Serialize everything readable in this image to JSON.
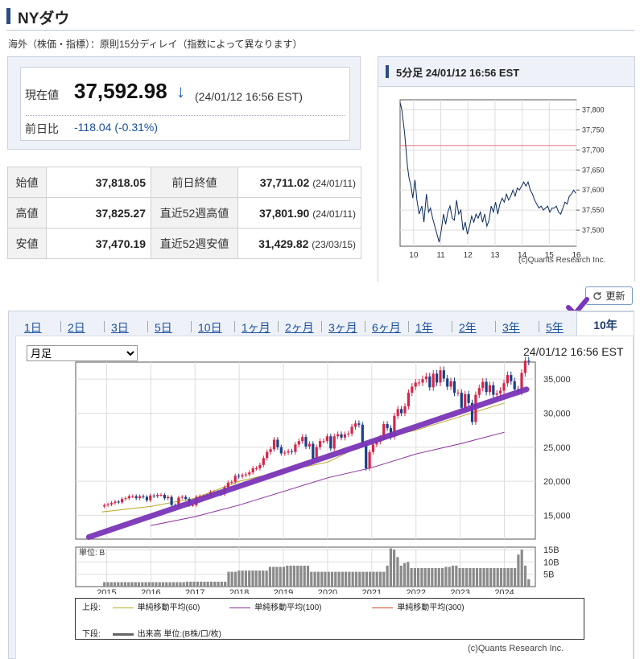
{
  "header": {
    "title": "NYダウ",
    "delay_note": "海外（株価・指標）：原則15分ディレイ（指数によって異なります）"
  },
  "quote": {
    "price_label": "現在値",
    "price": "37,592.98",
    "arrow": "↓",
    "timestamp": "(24/01/12 16:56 EST)",
    "change_label": "前日比",
    "change": "-118.04 (-0.31%)"
  },
  "stats": {
    "open_label": "始値",
    "open": "37,818.05",
    "high_label": "高値",
    "high": "37,825.27",
    "low_label": "安値",
    "low": "37,470.19",
    "prev_close_label": "前日終値",
    "prev_close": "37,711.02",
    "prev_close_date": "(24/01/11)",
    "high52_label": "直近52週高値",
    "high52": "37,801.90",
    "high52_date": "(24/01/11)",
    "low52_label": "直近52週安値",
    "low52": "31,429.82",
    "low52_date": "(23/03/15)"
  },
  "intraday": {
    "title": "5分足 24/01/12 16:56 EST",
    "credit": "(c)Quants Research Inc."
  },
  "refresh_label": "更新",
  "tabs": [
    {
      "label": "1日"
    },
    {
      "label": "2日"
    },
    {
      "label": "3日"
    },
    {
      "label": "5日"
    },
    {
      "label": "10日"
    },
    {
      "label": "1ヶ月"
    },
    {
      "label": "2ヶ月"
    },
    {
      "label": "3ヶ月"
    },
    {
      "label": "6ヶ月"
    },
    {
      "label": "1年"
    },
    {
      "label": "2年"
    },
    {
      "label": "3年"
    },
    {
      "label": "5年"
    }
  ],
  "active_tab": "10年",
  "period_select": {
    "selected": "月足"
  },
  "chart_timestamp": "24/01/12 16:56 EST",
  "legend": {
    "upper_label": "上段:",
    "lower_label": "下段:",
    "sma60": "単純移動平均(60)",
    "sma100": "単純移動平均(100)",
    "sma300": "単純移動平均(300)",
    "volume": "出来高 単位:(B株/口/枚)",
    "colors": {
      "sma60": "#b8a82a",
      "sma100": "#8a2c9c",
      "sma300": "#d04a2a",
      "volume": "#666666"
    }
  },
  "main_credit": "(c)Quants Research Inc.",
  "chart_data": [
    {
      "type": "line",
      "x_ticks": [
        "10",
        "11",
        "12",
        "13",
        "14",
        "15",
        "16"
      ],
      "x_range": [
        9.5,
        16
      ],
      "y_ticks": [
        "37,800",
        "37,750",
        "37,700",
        "37,650",
        "37,600",
        "37,550",
        "37,500"
      ],
      "ylim": [
        37460,
        37825
      ],
      "reference_line": 37711.02,
      "colors": {
        "line": "#0a2a5a",
        "reference": "#e07080"
      },
      "series": [
        {
          "x": [
            9.5,
            9.55,
            9.6,
            9.67,
            9.72,
            9.77,
            9.83,
            9.9,
            9.97,
            10.05,
            10.12,
            10.2,
            10.3,
            10.38,
            10.47,
            10.55,
            10.62,
            10.7,
            10.78,
            10.86,
            10.94,
            11.02,
            11.1,
            11.18,
            11.26,
            11.34,
            11.42,
            11.5,
            11.58,
            11.66,
            11.74,
            11.82,
            11.9,
            11.98,
            12.06,
            12.14,
            12.22,
            12.3,
            12.38,
            12.46,
            12.54,
            12.62,
            12.7,
            12.78,
            12.86,
            12.94,
            13.02,
            13.1,
            13.18,
            13.26,
            13.34,
            13.42,
            13.5,
            13.58,
            13.66,
            13.74,
            13.82,
            13.9,
            13.98,
            14.06,
            14.14,
            14.22,
            14.3,
            14.38,
            14.46,
            14.54,
            14.62,
            14.7,
            14.78,
            14.86,
            14.94,
            15.02,
            15.1,
            15.18,
            15.26,
            15.34,
            15.42,
            15.5,
            15.58,
            15.66,
            15.74,
            15.82,
            15.9,
            15.98
          ],
          "y": [
            37818,
            37805,
            37780,
            37740,
            37700,
            37660,
            37630,
            37610,
            37580,
            37625,
            37575,
            37540,
            37560,
            37520,
            37590,
            37545,
            37555,
            37530,
            37510,
            37490,
            37470,
            37500,
            37540,
            37515,
            37545,
            37560,
            37530,
            37525,
            37575,
            37540,
            37550,
            37500,
            37520,
            37490,
            37510,
            37535,
            37520,
            37540,
            37530,
            37545,
            37520,
            37540,
            37510,
            37525,
            37560,
            37545,
            37570,
            37540,
            37565,
            37580,
            37570,
            37590,
            37575,
            37585,
            37600,
            37585,
            37605,
            37600,
            37610,
            37620,
            37610,
            37620,
            37600,
            37590,
            37575,
            37565,
            37555,
            37560,
            37550,
            37555,
            37560,
            37545,
            37555,
            37555,
            37560,
            37545,
            37540,
            37555,
            37570,
            37565,
            37585,
            37590,
            37600,
            37592
          ]
        }
      ]
    },
    {
      "type": "candlestick",
      "x_ticks": [
        "2015",
        "2016",
        "2017",
        "2018",
        "2019",
        "2020",
        "2021",
        "2022",
        "2023",
        "2024"
      ],
      "x_range": [
        2014.3,
        2024.7
      ],
      "y_ticks": [
        "35,000",
        "30,000",
        "25,000",
        "20,000",
        "15,000"
      ],
      "ylim": [
        11500,
        37500
      ],
      "colors": {
        "up": "#d6254a",
        "down": "#1a3e8a",
        "trendline": "#7b35b8"
      },
      "monthly_close": [
        16500,
        16600,
        16800,
        17000,
        16900,
        17400,
        17500,
        17800,
        17800,
        17500,
        17800,
        17700,
        17200,
        17900,
        17800,
        18000,
        18000,
        17500,
        17700,
        16500,
        16300,
        17600,
        17700,
        17400,
        16500,
        16500,
        17700,
        17800,
        17800,
        17900,
        18400,
        18400,
        18300,
        18100,
        19100,
        19800,
        19900,
        20800,
        20700,
        20900,
        21000,
        21300,
        21900,
        21900,
        22400,
        23400,
        24300,
        24700,
        26100,
        25000,
        24100,
        24200,
        24400,
        24300,
        25400,
        25900,
        26500,
        25100,
        25500,
        23300,
        25000,
        25900,
        25900,
        26600,
        24800,
        26600,
        26900,
        26400,
        26900,
        27000,
        28000,
        28500,
        28300,
        25400,
        21900,
        24300,
        25400,
        25800,
        26400,
        28400,
        27800,
        26500,
        29600,
        30600,
        30000,
        31000,
        33000,
        33900,
        34500,
        34500,
        35000,
        35400,
        33800,
        35800,
        34500,
        36300,
        35100,
        33900,
        34700,
        33000,
        33000,
        30800,
        32800,
        31500,
        28700,
        32700,
        33700,
        34600,
        33100,
        34100,
        32700,
        32900,
        33300,
        34400,
        35600,
        34700,
        33500,
        33100,
        35900,
        37700,
        37593
      ],
      "trendline": {
        "start": [
          2014.6,
          11800
        ],
        "end": [
          2024.5,
          33500
        ]
      },
      "sma60_approx": [
        [
          2014.9,
          15500
        ],
        [
          2016.0,
          16300
        ],
        [
          2017.0,
          17500
        ],
        [
          2018.0,
          20000
        ],
        [
          2019.0,
          21500
        ],
        [
          2020.0,
          22800
        ],
        [
          2021.0,
          26000
        ],
        [
          2022.0,
          27500
        ],
        [
          2023.0,
          29500
        ],
        [
          2024.0,
          31500
        ]
      ],
      "sma100_approx": [
        [
          2016.0,
          13500
        ],
        [
          2017.0,
          14800
        ],
        [
          2018.0,
          16500
        ],
        [
          2019.0,
          18500
        ],
        [
          2020.0,
          20500
        ],
        [
          2021.0,
          22000
        ],
        [
          2022.0,
          24000
        ],
        [
          2023.0,
          25500
        ],
        [
          2024.0,
          27200
        ]
      ]
    },
    {
      "type": "bar",
      "unit_label": "単位: B",
      "y_ticks": [
        "15B",
        "10B",
        "5B"
      ],
      "ylim": [
        0,
        16
      ],
      "x_range": [
        2014.3,
        2024.7
      ],
      "color": "#8a8a8a",
      "values": [
        1.8,
        1.8,
        1.8,
        1.8,
        1.8,
        1.8,
        1.8,
        1.8,
        1.8,
        1.8,
        1.8,
        1.8,
        1.8,
        1.8,
        1.8,
        1.8,
        1.8,
        1.8,
        1.8,
        1.8,
        1.8,
        1.8,
        1.8,
        1.8,
        2.0,
        2.0,
        2.0,
        2.0,
        2.0,
        2.0,
        2.0,
        2.0,
        2.0,
        2.0,
        2.0,
        2.0,
        6.0,
        6.0,
        6.0,
        6.5,
        6.5,
        6.5,
        6.5,
        6.5,
        6.5,
        6.5,
        6.5,
        6.5,
        8.0,
        8.0,
        8.0,
        8.0,
        8.0,
        8.5,
        8.5,
        8.5,
        8.5,
        8.5,
        8.5,
        8.5,
        6.0,
        6.0,
        6.0,
        6.0,
        6.0,
        6.0,
        6.0,
        6.0,
        6.0,
        6.0,
        6.0,
        6.0,
        6.0,
        6.0,
        6.0,
        6.0,
        6.0,
        6.0,
        6.0,
        6.0,
        6.0,
        6.0,
        8.5,
        15.5,
        15.0,
        12.0,
        8.5,
        9.5,
        10.0,
        7.5,
        7.5,
        7.5,
        7.5,
        7.5,
        7.5,
        7.5,
        7.5,
        7.5,
        7.5,
        8.0,
        8.0,
        8.5,
        8.5,
        7.5,
        7.5,
        7.5,
        7.5,
        7.5,
        7.5,
        7.5,
        7.5,
        7.5,
        7.5,
        7.5,
        7.5,
        7.5,
        7.5,
        7.5,
        7.5,
        7.5,
        13.0,
        15.0,
        8.5,
        3.0
      ]
    }
  ]
}
